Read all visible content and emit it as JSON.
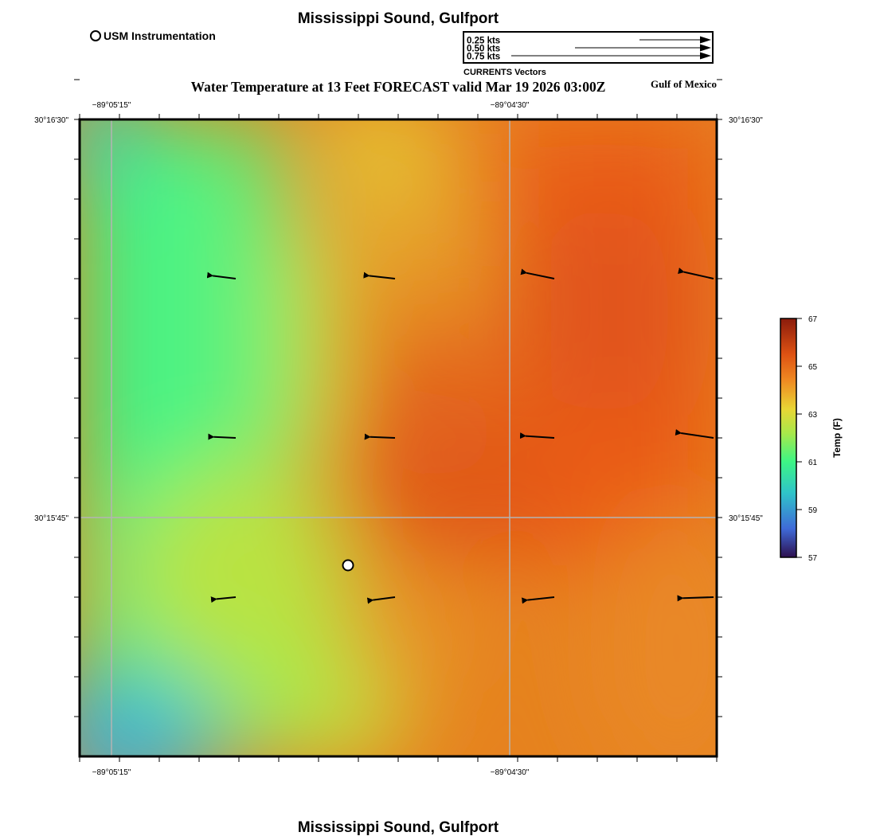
{
  "header": {
    "location_title": "Mississippi Sound, Gulfport",
    "map_title": "Water Temperature at 13 Feet FORECAST valid Mar 19 2026 03:00Z",
    "region_label": "Gulf of Mexico",
    "footer_title": "Mississippi Sound, Gulfport"
  },
  "station_legend": {
    "label": "USM Instrumentation",
    "icon": "open-circle-icon"
  },
  "vector_legend": {
    "caption": "CURRENTS Vectors",
    "entries": [
      {
        "label": "0.25 kts",
        "speed": 0.25
      },
      {
        "label": "0.50 kts",
        "speed": 0.5
      },
      {
        "label": "0.75 kts",
        "speed": 0.75
      }
    ]
  },
  "map": {
    "lon_ticks": [
      "−89°05'15\"",
      "−89°04'30\""
    ],
    "lat_ticks": [
      "30°16'30\"",
      "30°15'45\""
    ],
    "field": "water temperature",
    "station": {
      "name": "USM Instrumentation",
      "marker": "white-circle"
    },
    "current_vectors": [
      {
        "row": 1,
        "col": 1,
        "u": -0.24,
        "v": 0.03
      },
      {
        "row": 1,
        "col": 2,
        "u": -0.27,
        "v": 0.03
      },
      {
        "row": 1,
        "col": 3,
        "u": -0.29,
        "v": 0.06
      },
      {
        "row": 1,
        "col": 4,
        "u": -0.31,
        "v": 0.07
      },
      {
        "row": 2,
        "col": 1,
        "u": -0.23,
        "v": 0.01
      },
      {
        "row": 2,
        "col": 2,
        "u": -0.26,
        "v": 0.01
      },
      {
        "row": 2,
        "col": 3,
        "u": -0.3,
        "v": 0.02
      },
      {
        "row": 2,
        "col": 4,
        "u": -0.34,
        "v": 0.05
      },
      {
        "row": 3,
        "col": 1,
        "u": -0.2,
        "v": -0.02
      },
      {
        "row": 3,
        "col": 2,
        "u": -0.23,
        "v": -0.03
      },
      {
        "row": 3,
        "col": 3,
        "u": -0.28,
        "v": -0.03
      },
      {
        "row": 3,
        "col": 4,
        "u": -0.32,
        "v": -0.01
      }
    ]
  },
  "colorbar": {
    "label": "Temp (F)",
    "ticks": [
      "67",
      "65",
      "63",
      "61",
      "59",
      "57"
    ],
    "min": 57,
    "max": 67,
    "palette": [
      "#2d0f4e",
      "#3f6ad8",
      "#2fc4c9",
      "#3df585",
      "#a8e84a",
      "#e8d635",
      "#ef8a22",
      "#de5213",
      "#8a1b0c"
    ]
  }
}
